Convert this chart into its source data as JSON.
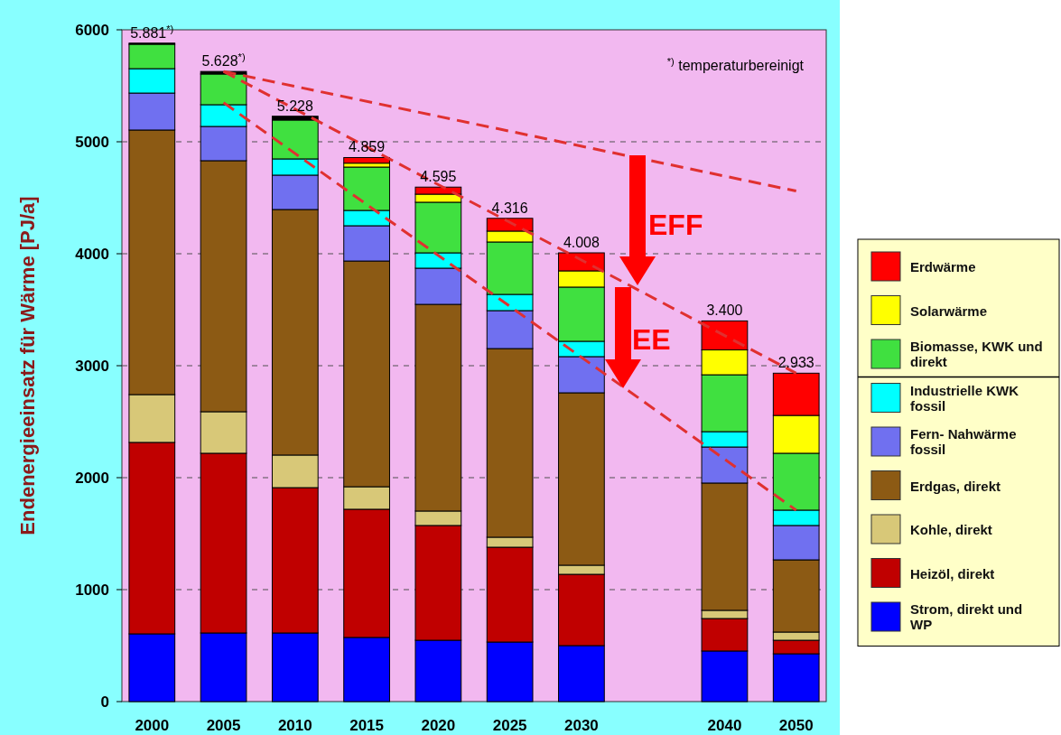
{
  "chart_data": {
    "type": "bar",
    "stacked": true,
    "ylabel": "Endenergieeinsatz für Wärme [PJ/a]",
    "categories": [
      "2000",
      "2005",
      "2010",
      "2015",
      "2020",
      "2025",
      "2030",
      null,
      "2040",
      "2050"
    ],
    "ylim": [
      0,
      6000
    ],
    "yticks": [
      0,
      1000,
      2000,
      3000,
      4000,
      5000,
      6000
    ],
    "grid": "y",
    "legend": "right",
    "totals": [
      "5.881$^{*)}$",
      "5.628$^{*)}$",
      "5.228",
      "4.859",
      "4.595",
      "4.316",
      "4.008",
      null,
      "3.400",
      "2.933"
    ],
    "annotations": [
      "$^{*)}$ temperaturbereinigt",
      "EFF",
      "EE"
    ],
    "series": [
      {
        "name": "Strom, direkt und WP",
        "color": "#0000ff",
        "values": [
          605,
          613,
          613,
          573,
          548,
          532,
          500,
          null,
          452,
          427
        ]
      },
      {
        "name": "Heizöl, direkt",
        "color": "#c00000",
        "values": [
          1710,
          1605,
          1298,
          1145,
          1025,
          847,
          637,
          null,
          290,
          121
        ]
      },
      {
        "name": "Kohle, direkt",
        "color": "#d8c878",
        "values": [
          427,
          371,
          291,
          201,
          129,
          89,
          81,
          null,
          73,
          73
        ]
      },
      {
        "name": "Erdgas, direkt",
        "color": "#8c5a14",
        "values": [
          2363,
          2242,
          2193,
          2016,
          1846,
          1685,
          1540,
          null,
          1137,
          645
        ]
      },
      {
        "name": "Fern- Nahwärme fossil",
        "color": "#7070f0",
        "values": [
          330,
          306,
          307,
          315,
          323,
          339,
          323,
          null,
          322,
          307
        ]
      },
      {
        "name": "Industrielle KWK fossil",
        "color": "#00ffff",
        "values": [
          218,
          194,
          145,
          137,
          137,
          145,
          137,
          null,
          137,
          137
        ]
      },
      {
        "name": "Biomasse, KWK und direkt",
        "color": "#40e040",
        "values": [
          218,
          274,
          347,
          387,
          452,
          468,
          484,
          null,
          508,
          508
        ]
      },
      {
        "name": "Solarwärme",
        "color": "#ffff00",
        "values": [
          0,
          0,
          0,
          35,
          72,
          97,
          145,
          null,
          222,
          338
        ]
      },
      {
        "name": "Erdwärme",
        "color": "#ff0000",
        "values": [
          0,
          0,
          0,
          50,
          63,
          114,
          161,
          null,
          259,
          377
        ]
      },
      {
        "color": "#000000",
        "values": [
          10,
          23,
          34,
          0,
          0,
          0,
          0,
          null,
          0,
          0
        ]
      },
      {
        "type": "line",
        "color": "#e03030",
        "line_style": "dashed",
        "marker": "none",
        "values": [
          null,
          5628,
          null,
          null,
          null,
          null,
          null,
          null,
          null,
          4560
        ]
      },
      {
        "type": "line",
        "color": "#e03030",
        "line_style": "dashed",
        "marker": "none",
        "values": [
          null,
          5628,
          null,
          null,
          null,
          null,
          null,
          null,
          null,
          2933
        ]
      },
      {
        "type": "line",
        "color": "#e03030",
        "line_style": "dashed",
        "marker": "none",
        "values": [
          null,
          5350,
          null,
          null,
          null,
          null,
          null,
          null,
          null,
          1710
        ]
      }
    ]
  }
}
